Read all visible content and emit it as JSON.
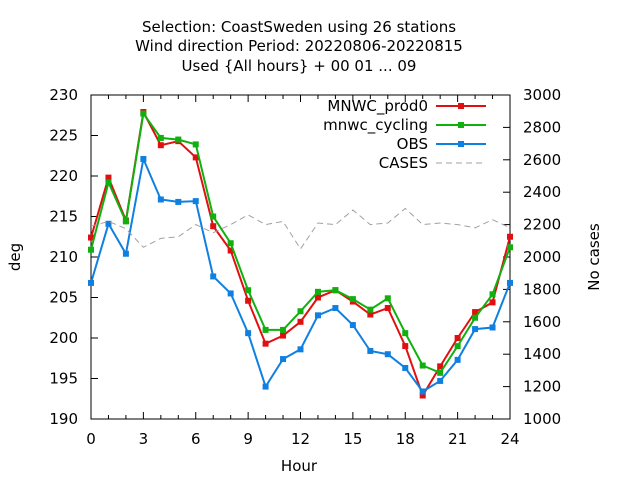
{
  "chart_data": {
    "type": "line",
    "title_lines": [
      "Selection: CoastSweden using    26 stations",
      "Wind direction   Period: 20220806-20220815",
      "Used {All hours} + 00 01 ... 09"
    ],
    "xlabel": "Hour",
    "ylabel": "deg",
    "y2label": "No cases",
    "xlim": [
      0,
      24
    ],
    "ylim": [
      190,
      230
    ],
    "y2lim": [
      1000,
      3000
    ],
    "x_ticks": [
      0,
      3,
      6,
      9,
      12,
      15,
      18,
      21,
      24
    ],
    "y_ticks": [
      190,
      195,
      200,
      205,
      210,
      215,
      220,
      225,
      230
    ],
    "y2_ticks": [
      1000,
      1200,
      1400,
      1600,
      1800,
      2000,
      2200,
      2400,
      2600,
      2800,
      3000
    ],
    "grid": false,
    "legend_position": "top-right",
    "x": [
      0,
      1,
      2,
      3,
      4,
      5,
      6,
      7,
      8,
      9,
      10,
      11,
      12,
      13,
      14,
      15,
      16,
      17,
      18,
      19,
      20,
      21,
      22,
      23,
      24
    ],
    "series": [
      {
        "name": "MNWC_prod0",
        "axis": "y1",
        "color": "#e01010",
        "marker": "square",
        "values": [
          212.4,
          219.8,
          214.5,
          227.9,
          223.8,
          224.3,
          222.3,
          213.8,
          210.8,
          204.6,
          199.3,
          200.3,
          202.0,
          205.0,
          205.9,
          204.5,
          202.9,
          203.7,
          199.0,
          192.9,
          196.5,
          200.0,
          203.2,
          204.4,
          212.5
        ]
      },
      {
        "name": "mnwc_cycling",
        "axis": "y1",
        "color": "#10b010",
        "marker": "square",
        "values": [
          210.9,
          219.2,
          214.4,
          227.7,
          224.7,
          224.5,
          223.9,
          215.0,
          211.7,
          205.9,
          201.0,
          201.0,
          203.3,
          205.7,
          205.9,
          204.8,
          203.5,
          204.9,
          200.6,
          196.6,
          195.7,
          199.0,
          202.5,
          205.4,
          211.2
        ]
      },
      {
        "name": "OBS",
        "axis": "y1",
        "color": "#1080e0",
        "marker": "square",
        "values": [
          206.8,
          214.1,
          210.4,
          222.1,
          217.1,
          216.8,
          216.9,
          207.6,
          205.5,
          200.6,
          194.0,
          197.4,
          198.6,
          202.8,
          203.7,
          201.6,
          198.4,
          198.0,
          196.3,
          193.4,
          194.7,
          197.3,
          201.1,
          201.3,
          206.8
        ]
      },
      {
        "name": "CASES",
        "axis": "y2",
        "color": "#a0a0a0",
        "marker": "none",
        "dashed": true,
        "values": [
          2190,
          2220,
          2175,
          2060,
          2115,
          2125,
          2200,
          2150,
          2200,
          2260,
          2200,
          2220,
          2050,
          2210,
          2200,
          2290,
          2200,
          2210,
          2300,
          2200,
          2210,
          2200,
          2180,
          2230,
          2180
        ]
      }
    ]
  }
}
